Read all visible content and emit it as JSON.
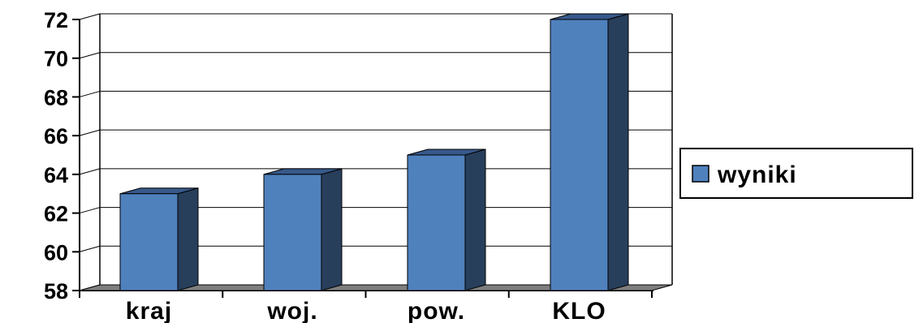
{
  "chart_data": {
    "type": "bar",
    "categories": [
      "kraj",
      "woj.",
      "pow.",
      "KLO"
    ],
    "series": [
      {
        "name": "wyniki",
        "values": [
          63,
          64,
          65,
          72
        ]
      }
    ],
    "title": "",
    "xlabel": "",
    "ylabel": "",
    "ylim": [
      58,
      72
    ],
    "yticks": [
      58,
      60,
      62,
      64,
      66,
      68,
      70,
      72
    ],
    "grid": true,
    "legend_position": "right",
    "style": "3d-column",
    "colors": {
      "bar_front": "#4f81bd",
      "bar_side": "#283f5c",
      "bar_top": "#37598a",
      "floor": "#7f7f7f",
      "grid": "#000000"
    }
  }
}
